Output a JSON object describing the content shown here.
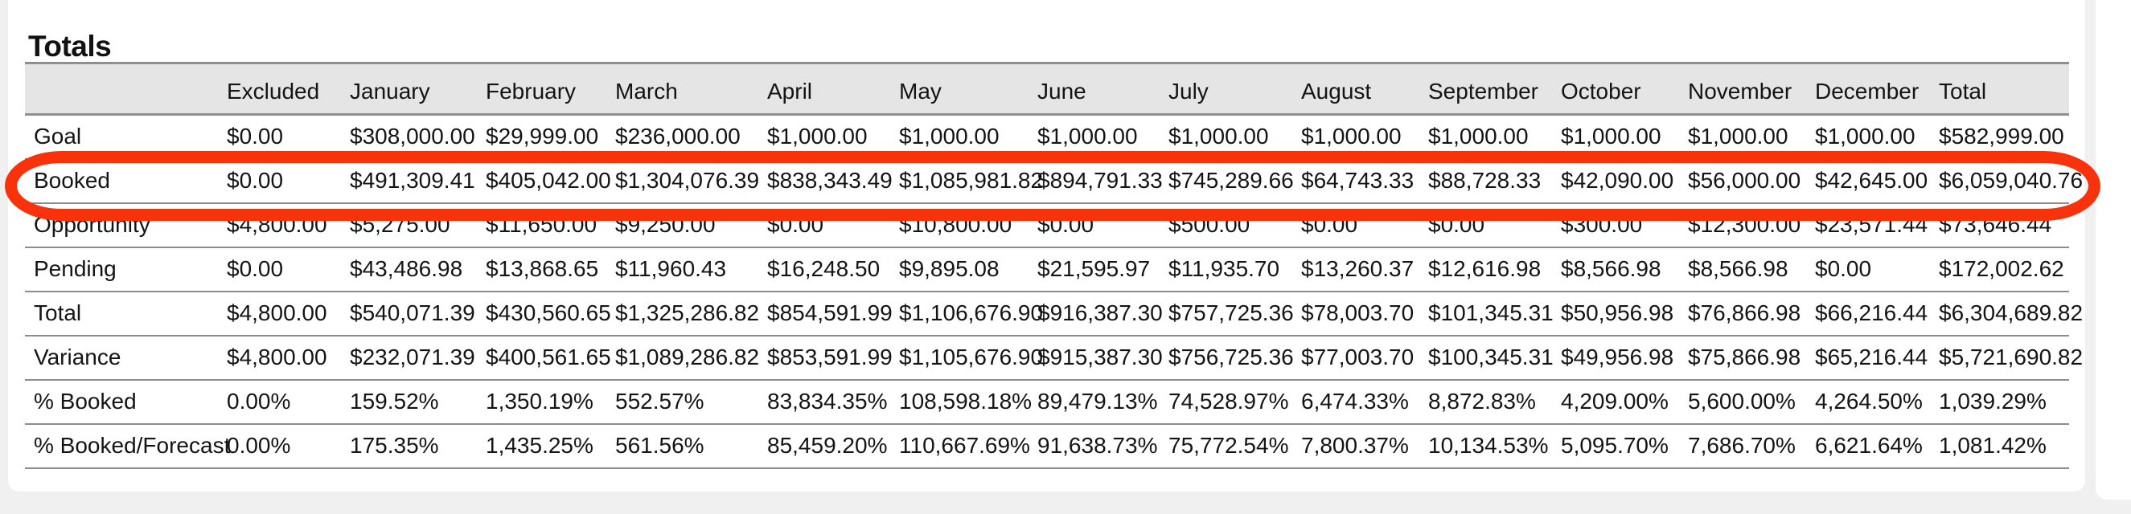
{
  "page": {
    "title": "Totals"
  },
  "table": {
    "columns": [
      "",
      "Excluded",
      "January",
      "February",
      "March",
      "April",
      "May",
      "June",
      "July",
      "August",
      "September",
      "October",
      "November",
      "December",
      "Total"
    ],
    "rows": [
      {
        "label": "Goal",
        "values": [
          "$0.00",
          "$308,000.00",
          "$29,999.00",
          "$236,000.00",
          "$1,000.00",
          "$1,000.00",
          "$1,000.00",
          "$1,000.00",
          "$1,000.00",
          "$1,000.00",
          "$1,000.00",
          "$1,000.00",
          "$1,000.00",
          "$582,999.00"
        ]
      },
      {
        "label": "Booked",
        "values": [
          "$0.00",
          "$491,309.41",
          "$405,042.00",
          "$1,304,076.39",
          "$838,343.49",
          "$1,085,981.82",
          "$894,791.33",
          "$745,289.66",
          "$64,743.33",
          "$88,728.33",
          "$42,090.00",
          "$56,000.00",
          "$42,645.00",
          "$6,059,040.76"
        ]
      },
      {
        "label": "Opportunity",
        "values": [
          "$4,800.00",
          "$5,275.00",
          "$11,650.00",
          "$9,250.00",
          "$0.00",
          "$10,800.00",
          "$0.00",
          "$500.00",
          "$0.00",
          "$0.00",
          "$300.00",
          "$12,300.00",
          "$23,571.44",
          "$73,646.44"
        ]
      },
      {
        "label": "Pending",
        "values": [
          "$0.00",
          "$43,486.98",
          "$13,868.65",
          "$11,960.43",
          "$16,248.50",
          "$9,895.08",
          "$21,595.97",
          "$11,935.70",
          "$13,260.37",
          "$12,616.98",
          "$8,566.98",
          "$8,566.98",
          "$0.00",
          "$172,002.62"
        ]
      },
      {
        "label": "Total",
        "values": [
          "$4,800.00",
          "$540,071.39",
          "$430,560.65",
          "$1,325,286.82",
          "$854,591.99",
          "$1,106,676.90",
          "$916,387.30",
          "$757,725.36",
          "$78,003.70",
          "$101,345.31",
          "$50,956.98",
          "$76,866.98",
          "$66,216.44",
          "$6,304,689.82"
        ]
      },
      {
        "label": "Variance",
        "values": [
          "$4,800.00",
          "$232,071.39",
          "$400,561.65",
          "$1,089,286.82",
          "$853,591.99",
          "$1,105,676.90",
          "$915,387.30",
          "$756,725.36",
          "$77,003.70",
          "$100,345.31",
          "$49,956.98",
          "$75,866.98",
          "$65,216.44",
          "$5,721,690.82"
        ]
      },
      {
        "label": "% Booked",
        "values": [
          "0.00%",
          "159.52%",
          "1,350.19%",
          "552.57%",
          "83,834.35%",
          "108,598.18%",
          "89,479.13%",
          "74,528.97%",
          "6,474.33%",
          "8,872.83%",
          "4,209.00%",
          "5,600.00%",
          "4,264.50%",
          "1,039.29%"
        ]
      },
      {
        "label": "% Booked/Forecast",
        "values": [
          "0.00%",
          "175.35%",
          "1,435.25%",
          "561.56%",
          "85,459.20%",
          "110,667.69%",
          "91,638.73%",
          "75,772.54%",
          "7,800.37%",
          "10,134.53%",
          "5,095.70%",
          "7,686.70%",
          "6,621.64%",
          "1,081.42%"
        ]
      }
    ]
  },
  "annotation": {
    "shape": "oval-highlight",
    "highlighted_row": "Booked",
    "color": "#f8320b"
  },
  "colors": {
    "page_background": "#f0f0f1",
    "card_background": "#ffffff",
    "header_background": "#e5e5e5",
    "grid_line": "#8c8c8c",
    "text": "#141414",
    "annotation_red": "#f8320b"
  }
}
